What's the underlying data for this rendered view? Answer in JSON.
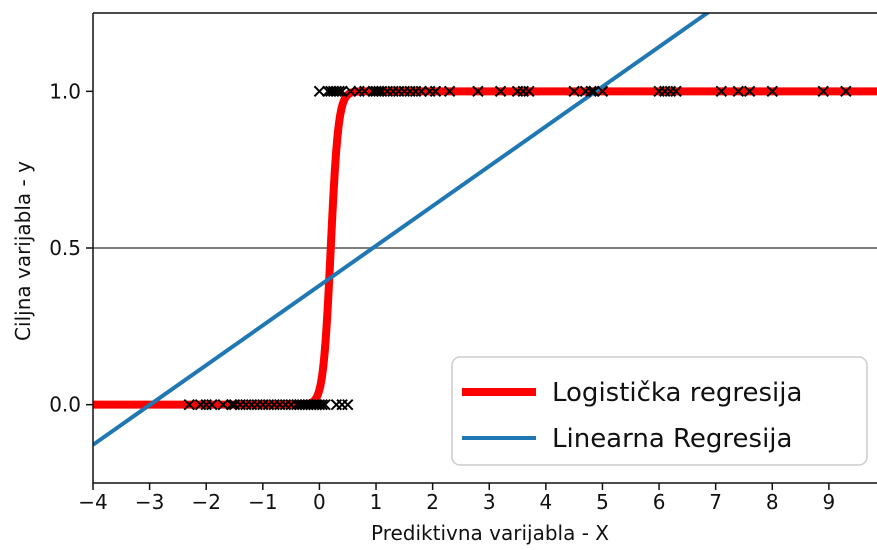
{
  "chart_data": {
    "type": "line",
    "xlabel": "Prediktivna varijabla - X",
    "ylabel": "Ciljna varijabla - y",
    "xlim": [
      -4,
      9.85
    ],
    "ylim": [
      -0.25,
      1.25
    ],
    "xticks": [
      "−4",
      "−3",
      "−2",
      "−1",
      "0",
      "1",
      "2",
      "3",
      "4",
      "5",
      "6",
      "7",
      "8",
      "9"
    ],
    "xtick_values": [
      -4,
      -3,
      -2,
      -1,
      0,
      1,
      2,
      3,
      4,
      5,
      6,
      7,
      8,
      9
    ],
    "yticks": [
      "0.0",
      "0.5",
      "1.0"
    ],
    "ytick_values": [
      0.0,
      0.5,
      1.0
    ],
    "hline": 0.5,
    "legend_position": "bottom-right",
    "series": [
      {
        "name": "Logistička regresija",
        "kind": "logistic",
        "color": "#ff0000",
        "midpoint": 0.2,
        "steepness": 15
      },
      {
        "name": "Linearna Regresija",
        "kind": "linear",
        "color": "#1f77b4",
        "slope": 0.127,
        "intercept": 0.38
      }
    ],
    "scatter": {
      "marker": "x",
      "color": "#000000",
      "class0_x": [
        -2.3,
        -2.1,
        -2.0,
        -1.9,
        -1.7,
        -1.55,
        -1.5,
        -1.4,
        -1.3,
        -1.2,
        -1.1,
        -1.0,
        -0.9,
        -0.8,
        -0.7,
        -0.6,
        -0.5,
        -0.4,
        -0.35,
        -0.3,
        -0.25,
        -0.2,
        -0.15,
        -0.1,
        -0.05,
        0.0,
        0.05,
        0.1,
        0.3,
        0.4,
        0.5
      ],
      "class1_x": [
        0.0,
        0.15,
        0.2,
        0.25,
        0.3,
        0.35,
        0.4,
        0.55,
        0.7,
        0.8,
        0.95,
        1.0,
        1.05,
        1.1,
        1.2,
        1.3,
        1.4,
        1.5,
        1.6,
        1.7,
        1.8,
        1.95,
        2.05,
        2.3,
        2.8,
        3.2,
        3.5,
        3.6,
        3.7,
        4.5,
        4.7,
        4.8,
        4.85,
        5.0,
        6.0,
        6.1,
        6.2,
        6.3,
        7.1,
        7.4,
        7.6,
        8.0,
        8.9,
        9.3
      ]
    }
  }
}
